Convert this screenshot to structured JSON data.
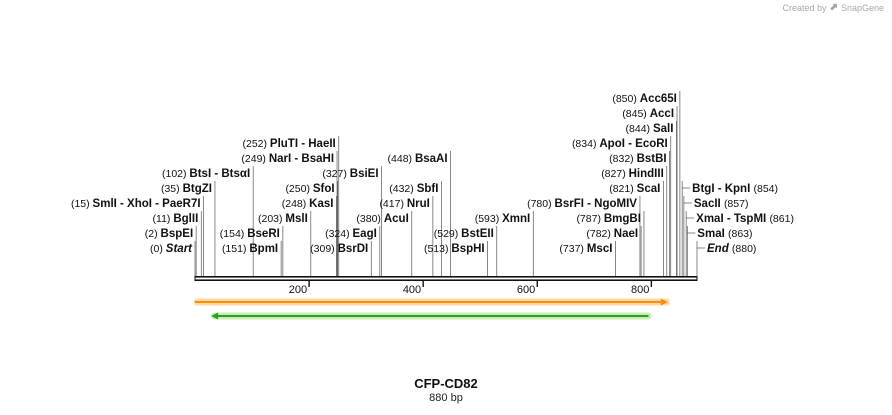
{
  "credit": {
    "text": "Created by",
    "brand": "SnapGene"
  },
  "sequence": {
    "name": "CFP-CD82",
    "length_label": "880 bp",
    "length": 880
  },
  "ruler": {
    "ticks": [
      200,
      400,
      600,
      800
    ]
  },
  "features": [
    {
      "name": "orange-feature-arrow",
      "start": 0,
      "end": 827,
      "color": "#ff8c00",
      "glow": "#fcd9a8"
    },
    {
      "name": "green-feature-arrow",
      "start": 30,
      "end": 795,
      "color": "#2ea017",
      "glow": "#c8ecbc"
    }
  ],
  "sites": [
    {
      "pos": 0,
      "pos_label": "(0)",
      "label": "Start",
      "italic": true,
      "side": "left"
    },
    {
      "pos": 2,
      "pos_label": "(2)",
      "label": "BspEI",
      "side": "left"
    },
    {
      "pos": 11,
      "pos_label": "(11)",
      "label": "BglII",
      "side": "left"
    },
    {
      "pos": 15,
      "pos_label": "(15)",
      "label": "SmlI  - XhoI  - PaeR7I",
      "side": "left"
    },
    {
      "pos": 35,
      "pos_label": "(35)",
      "label": "BtgZI",
      "side": "left"
    },
    {
      "pos": 102,
      "pos_label": "(102)",
      "label": "BtsI  - BtsαI",
      "side": "left"
    },
    {
      "pos": 151,
      "pos_label": "(151)",
      "label": "BpmI",
      "side": "left"
    },
    {
      "pos": 154,
      "pos_label": "(154)",
      "label": "BseRI",
      "side": "left"
    },
    {
      "pos": 203,
      "pos_label": "(203)",
      "label": "MslI",
      "side": "left"
    },
    {
      "pos": 248,
      "pos_label": "(248)",
      "label": "KasI",
      "side": "left"
    },
    {
      "pos": 249,
      "pos_label": "(249)",
      "label": "NarI  - BsaHI",
      "side": "left"
    },
    {
      "pos": 250,
      "pos_label": "(250)",
      "label": "SfoI",
      "side": "left"
    },
    {
      "pos": 252,
      "pos_label": "(252)",
      "label": "PluTI  - HaeII",
      "side": "left"
    },
    {
      "pos": 309,
      "pos_label": "(309)",
      "label": "BsrDI",
      "side": "left"
    },
    {
      "pos": 324,
      "pos_label": "(324)",
      "label": "EagI",
      "side": "left"
    },
    {
      "pos": 327,
      "pos_label": "(327)",
      "label": "BsiEI",
      "side": "left"
    },
    {
      "pos": 380,
      "pos_label": "(380)",
      "label": "AcuI",
      "side": "left"
    },
    {
      "pos": 417,
      "pos_label": "(417)",
      "label": "NruI",
      "side": "left"
    },
    {
      "pos": 432,
      "pos_label": "(432)",
      "label": "SbfI",
      "side": "left"
    },
    {
      "pos": 448,
      "pos_label": "(448)",
      "label": "BsaAI",
      "side": "left"
    },
    {
      "pos": 513,
      "pos_label": "(513)",
      "label": "BspHI",
      "side": "left"
    },
    {
      "pos": 529,
      "pos_label": "(529)",
      "label": "BstEII",
      "side": "left"
    },
    {
      "pos": 593,
      "pos_label": "(593)",
      "label": "XmnI",
      "side": "left"
    },
    {
      "pos": 737,
      "pos_label": "(737)",
      "label": "MscI",
      "side": "left"
    },
    {
      "pos": 780,
      "pos_label": "(780)",
      "label": "BsrFI  - NgoMIV",
      "side": "left"
    },
    {
      "pos": 782,
      "pos_label": "(782)",
      "label": "NaeI",
      "side": "left"
    },
    {
      "pos": 787,
      "pos_label": "(787)",
      "label": "BmgBI",
      "side": "left"
    },
    {
      "pos": 821,
      "pos_label": "(821)",
      "label": "ScaI",
      "side": "left"
    },
    {
      "pos": 827,
      "pos_label": "(827)",
      "label": "HindIII",
      "side": "left"
    },
    {
      "pos": 832,
      "pos_label": "(832)",
      "label": "BstBI",
      "side": "left"
    },
    {
      "pos": 834,
      "pos_label": "(834)",
      "label": "ApoI  - EcoRI",
      "side": "left"
    },
    {
      "pos": 844,
      "pos_label": "(844)",
      "label": "SalI",
      "side": "left"
    },
    {
      "pos": 845,
      "pos_label": "(845)",
      "label": "AccI",
      "side": "left"
    },
    {
      "pos": 850,
      "pos_label": "(850)",
      "label": "Acc65I",
      "side": "left"
    },
    {
      "pos": 854,
      "pos_label": "(854)",
      "label": "BtgI  - KpnI",
      "side": "right"
    },
    {
      "pos": 857,
      "pos_label": "(857)",
      "label": "SacII",
      "side": "right"
    },
    {
      "pos": 861,
      "pos_label": "(861)",
      "label": "XmaI  - TspMI",
      "side": "right"
    },
    {
      "pos": 863,
      "pos_label": "(863)",
      "label": "SmaI",
      "side": "right"
    },
    {
      "pos": 880,
      "pos_label": "(880)",
      "label": "End",
      "italic": true,
      "side": "right"
    }
  ]
}
